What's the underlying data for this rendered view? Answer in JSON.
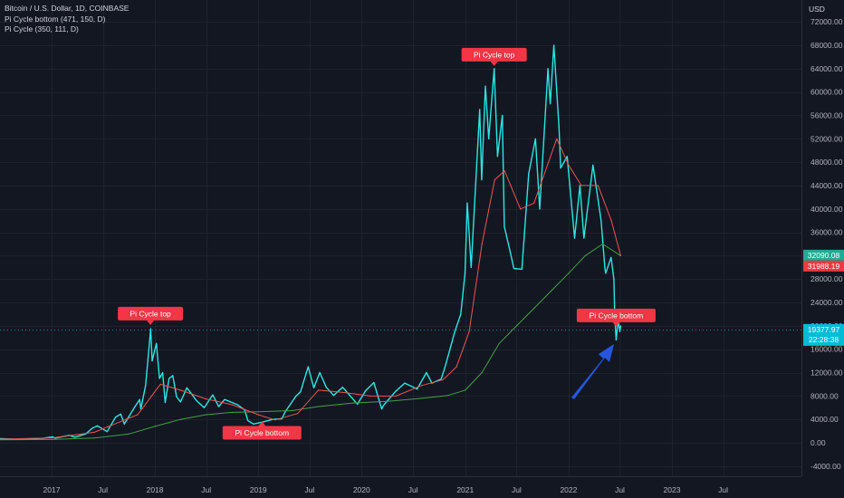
{
  "legend": {
    "symbol": "Bitcoin / U.S. Dollar, 1D, COINBASE",
    "indicator_1": "Pi Cycle bottom (471, 150, D)",
    "indicator_2": "Pi Cycle (350, 111, D)"
  },
  "price_axis": {
    "currency": "USD"
  },
  "colors": {
    "background": "#131722",
    "grid": "#1e222d",
    "price_line": "#26e8e4",
    "ma_red": "#ef5350",
    "ma_green": "#43a047",
    "label_red": "#f23645",
    "label_green": "#22ab94",
    "label_cyan": "#00bcd4",
    "arrow": "#2962ff",
    "text": "#b2b5be"
  },
  "icons": {
    "annotation_arrow": "arrow-up-right-icon"
  },
  "chart_data": {
    "type": "line",
    "title": "Bitcoin / U.S. Dollar, 1D, COINBASE",
    "xlabel": "",
    "ylabel": "",
    "grid": true,
    "x_ticks": [
      "2017",
      "Jul",
      "2018",
      "Jul",
      "2019",
      "Jul",
      "2020",
      "Jul",
      "2021",
      "Jul",
      "2022",
      "Jul",
      "2023",
      "Jul"
    ],
    "y_ticks": [
      "-4000.00",
      "0.00",
      "4000.00",
      "8000.00",
      "12000.00",
      "16000.00",
      "20000.00",
      "24000.00",
      "28000.00",
      "32000.00",
      "36000.00",
      "40000.00",
      "44000.00",
      "48000.00",
      "52000.00",
      "56000.00",
      "60000.00",
      "64000.00",
      "68000.00",
      "72000.00"
    ],
    "ylim": [
      -4000,
      72000
    ],
    "price_labels": [
      {
        "value": 32090.08,
        "text": "32090.08",
        "color": "green"
      },
      {
        "value": 31988.19,
        "text": "31988.19",
        "color": "red"
      },
      {
        "value": 19377.97,
        "text": "19377.97",
        "sub": "22:28:38",
        "color": "cyan"
      }
    ],
    "annotations": [
      {
        "text": "Pi Cycle top",
        "x": "2017-12-16",
        "anchor_value": 19700,
        "pointer": "down"
      },
      {
        "text": "Pi Cycle top",
        "x": "2021-04-13",
        "anchor_value": 64000,
        "pointer": "down"
      },
      {
        "text": "Pi Cycle bottom",
        "x": "2019-01-14",
        "anchor_value": 4100,
        "pointer": "up"
      },
      {
        "text": "Pi Cycle bottom",
        "x": "2022-06-18",
        "anchor_value": 19377.97,
        "pointer": "down"
      }
    ],
    "series": [
      {
        "name": "Bitcoin / U.S. Dollar, 1D, COINBASE",
        "style": "price",
        "x": [
          "2016-06-15",
          "2016-09-01",
          "2016-12-01",
          "2017-01-05",
          "2017-01-12",
          "2017-02-20",
          "2017-03-05",
          "2017-03-25",
          "2017-05-01",
          "2017-05-25",
          "2017-06-12",
          "2017-07-16",
          "2017-08-15",
          "2017-09-02",
          "2017-09-15",
          "2017-10-20",
          "2017-11-08",
          "2017-11-12",
          "2017-11-29",
          "2017-12-17",
          "2017-12-22",
          "2018-01-06",
          "2018-01-17",
          "2018-01-28",
          "2018-02-06",
          "2018-02-20",
          "2018-03-05",
          "2018-03-18",
          "2018-04-01",
          "2018-04-24",
          "2018-05-28",
          "2018-06-24",
          "2018-07-24",
          "2018-08-14",
          "2018-09-04",
          "2018-10-20",
          "2018-11-14",
          "2018-11-25",
          "2018-12-15",
          "2019-01-20",
          "2019-02-20",
          "2019-03-25",
          "2019-04-05",
          "2019-05-14",
          "2019-05-30",
          "2019-06-26",
          "2019-07-16",
          "2019-08-06",
          "2019-08-29",
          "2019-09-24",
          "2019-10-26",
          "2019-12-17",
          "2020-01-15",
          "2020-02-13",
          "2020-03-12",
          "2020-03-20",
          "2020-04-30",
          "2020-06-01",
          "2020-07-15",
          "2020-08-17",
          "2020-09-05",
          "2020-10-08",
          "2020-10-21",
          "2020-11-05",
          "2020-11-25",
          "2020-12-16",
          "2020-12-31",
          "2021-01-08",
          "2021-01-22",
          "2021-02-21",
          "2021-02-28",
          "2021-03-13",
          "2021-03-25",
          "2021-04-13",
          "2021-04-25",
          "2021-05-12",
          "2021-05-19",
          "2021-06-07",
          "2021-06-22",
          "2021-07-20",
          "2021-08-13",
          "2021-09-06",
          "2021-09-21",
          "2021-10-20",
          "2021-10-28",
          "2021-11-10",
          "2021-11-28",
          "2021-12-04",
          "2021-12-27",
          "2022-01-22",
          "2022-02-10",
          "2022-02-24",
          "2022-03-28",
          "2022-04-26",
          "2022-05-09",
          "2022-05-12",
          "2022-05-31",
          "2022-06-10",
          "2022-06-13",
          "2022-06-18",
          "2022-06-25",
          "2022-07-01",
          "2022-07-04"
        ],
        "values": [
          750,
          600,
          760,
          1000,
          790,
          1150,
          1270,
          960,
          1500,
          2500,
          2900,
          1900,
          4400,
          4900,
          3200,
          6000,
          7400,
          5800,
          9800,
          19500,
          14000,
          17000,
          11000,
          12000,
          6900,
          11000,
          11500,
          7900,
          7000,
          9400,
          7200,
          6000,
          8200,
          6200,
          7400,
          6500,
          5600,
          3800,
          3200,
          3600,
          4000,
          4100,
          5200,
          8000,
          8700,
          13000,
          9400,
          12000,
          9500,
          8100,
          9500,
          6600,
          8900,
          10300,
          5800,
          6500,
          8800,
          10200,
          9200,
          12000,
          10200,
          10900,
          12900,
          15500,
          19000,
          22000,
          29000,
          41000,
          30000,
          57000,
          45000,
          61000,
          52000,
          64000,
          49000,
          56000,
          37000,
          33000,
          29800,
          29700,
          46000,
          52000,
          40000,
          64000,
          58000,
          68000,
          54000,
          47000,
          49000,
          35000,
          44000,
          35000,
          47500,
          38000,
          30000,
          29000,
          31700,
          28000,
          22000,
          17600,
          21000,
          19000,
          20000
        ]
      },
      {
        "name": "",
        "style": "ma_red",
        "x": [
          "2016-06-15",
          "2017-01-01",
          "2017-06-01",
          "2017-11-01",
          "2017-12-20",
          "2018-01-20",
          "2018-04-01",
          "2018-07-01",
          "2018-10-01",
          "2019-01-01",
          "2019-03-01",
          "2019-05-20",
          "2019-08-01",
          "2019-11-01",
          "2020-02-01",
          "2020-05-01",
          "2020-08-01",
          "2020-10-15",
          "2020-12-01",
          "2021-01-15",
          "2021-03-01",
          "2021-04-15",
          "2021-05-20",
          "2021-07-15",
          "2021-09-01",
          "2021-11-20",
          "2022-01-01",
          "2022-02-15",
          "2022-04-15",
          "2022-06-01",
          "2022-07-04"
        ],
        "values": [
          600,
          800,
          1800,
          4800,
          8000,
          10000,
          9000,
          7500,
          6500,
          4800,
          3900,
          5000,
          9000,
          8600,
          8000,
          8000,
          9800,
          10800,
          13000,
          19000,
          34000,
          45000,
          46500,
          40000,
          41000,
          52000,
          47500,
          44000,
          44000,
          38000,
          32000
        ]
      },
      {
        "name": "",
        "style": "ma_green",
        "x": [
          "2016-06-15",
          "2017-01-01",
          "2017-06-01",
          "2017-10-01",
          "2018-01-01",
          "2018-04-01",
          "2018-07-01",
          "2018-10-01",
          "2019-01-01",
          "2019-05-01",
          "2019-08-01",
          "2019-12-01",
          "2020-04-01",
          "2020-08-01",
          "2020-11-01",
          "2021-01-01",
          "2021-03-01",
          "2021-05-01",
          "2021-07-01",
          "2021-09-01",
          "2021-11-01",
          "2022-01-01",
          "2022-03-01",
          "2022-05-01",
          "2022-07-04"
        ],
        "values": [
          500,
          560,
          800,
          1500,
          2800,
          4000,
          4800,
          5200,
          5300,
          5500,
          6200,
          6800,
          7100,
          7600,
          8100,
          9000,
          12000,
          17000,
          20000,
          23000,
          26000,
          29000,
          32000,
          34000,
          32000
        ]
      }
    ]
  }
}
